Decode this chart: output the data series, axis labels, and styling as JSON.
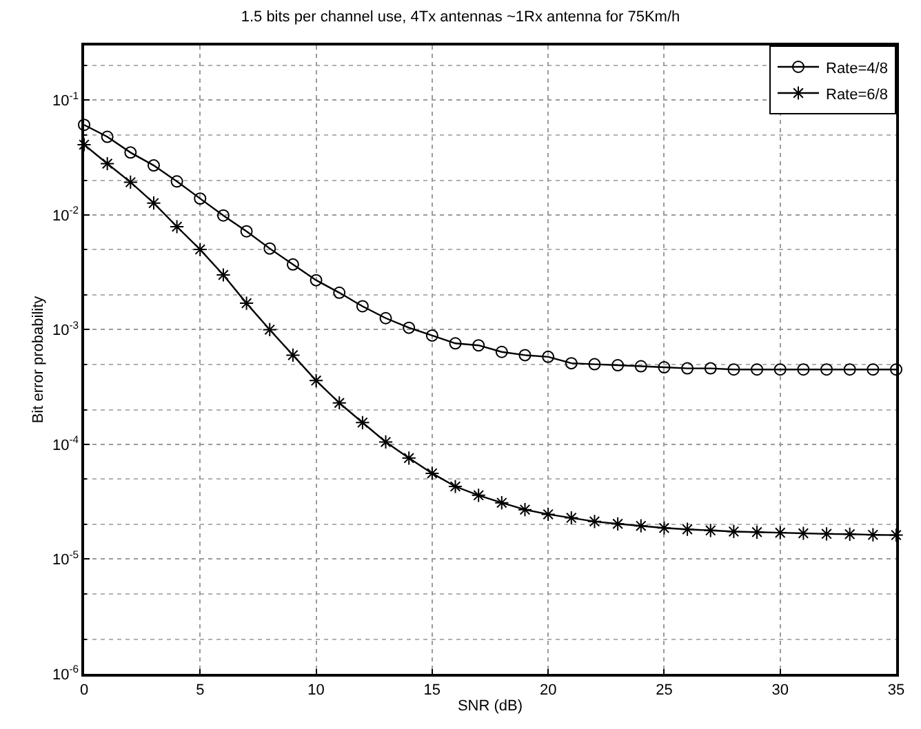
{
  "chart_data": {
    "type": "line",
    "title": "1.5 bits per channel use, 4Tx antennas ~1Rx antenna for 75Km/h",
    "xlabel": "SNR (dB)",
    "ylabel": "Bit error probability",
    "x": [
      0,
      1,
      2,
      3,
      4,
      5,
      6,
      7,
      8,
      9,
      10,
      11,
      12,
      13,
      14,
      15,
      16,
      17,
      18,
      19,
      20,
      21,
      22,
      23,
      24,
      25,
      26,
      27,
      28,
      29,
      30,
      31,
      32,
      33,
      34,
      35
    ],
    "series": [
      {
        "name": "Rate=4/8",
        "color": "#000000",
        "marker": "circle",
        "values": [
          0.061,
          0.048,
          0.035,
          0.027,
          0.0196,
          0.0139,
          0.0099,
          0.0072,
          0.0051,
          0.0037,
          0.0027,
          0.0021,
          0.0016,
          0.00126,
          0.00104,
          0.00089,
          0.00076,
          0.00073,
          0.00064,
          0.0006,
          0.00058,
          0.00051,
          0.0005,
          0.00049,
          0.00048,
          0.00047,
          0.00046,
          0.00046,
          0.00045,
          0.00045,
          0.00045,
          0.00045,
          0.00045,
          0.00045,
          0.00045,
          0.00045
        ]
      },
      {
        "name": "Rate=6/8",
        "color": "#000000",
        "marker": "cross",
        "values": [
          0.041,
          0.028,
          0.0193,
          0.0127,
          0.0079,
          0.005,
          0.003,
          0.0017,
          0.001,
          0.0006,
          0.00036,
          0.00023,
          0.000155,
          0.000105,
          7.6e-05,
          5.6e-05,
          4.3e-05,
          3.6e-05,
          3.1e-05,
          2.7e-05,
          2.46e-05,
          2.29e-05,
          2.13e-05,
          2.03e-05,
          1.95e-05,
          1.87e-05,
          1.82e-05,
          1.78e-05,
          1.74e-05,
          1.72e-05,
          1.7e-05,
          1.68e-05,
          1.66e-05,
          1.65e-05,
          1.63e-05,
          1.62e-05
        ]
      }
    ],
    "log": "y",
    "grid": true,
    "legend": "top right",
    "line_style": "solid",
    "xlim": [
      0,
      35
    ],
    "xticks": [
      0,
      5,
      10,
      15,
      20,
      25,
      30,
      35
    ],
    "ylim": [
      1e-06,
      0.3
    ],
    "yticks": [
      {
        "value": 0.1,
        "label": "10$^{-1}$"
      },
      {
        "value": 0.01,
        "label": "10$^{-2}$"
      },
      {
        "value": 0.001,
        "label": "10$^{-3}$"
      },
      {
        "value": 0.0001,
        "label": "10$^{-4}$"
      },
      {
        "value": 1e-05,
        "label": "10$^{-5}$"
      },
      {
        "value": 1e-06,
        "label": "10$^{-6}$"
      }
    ]
  }
}
